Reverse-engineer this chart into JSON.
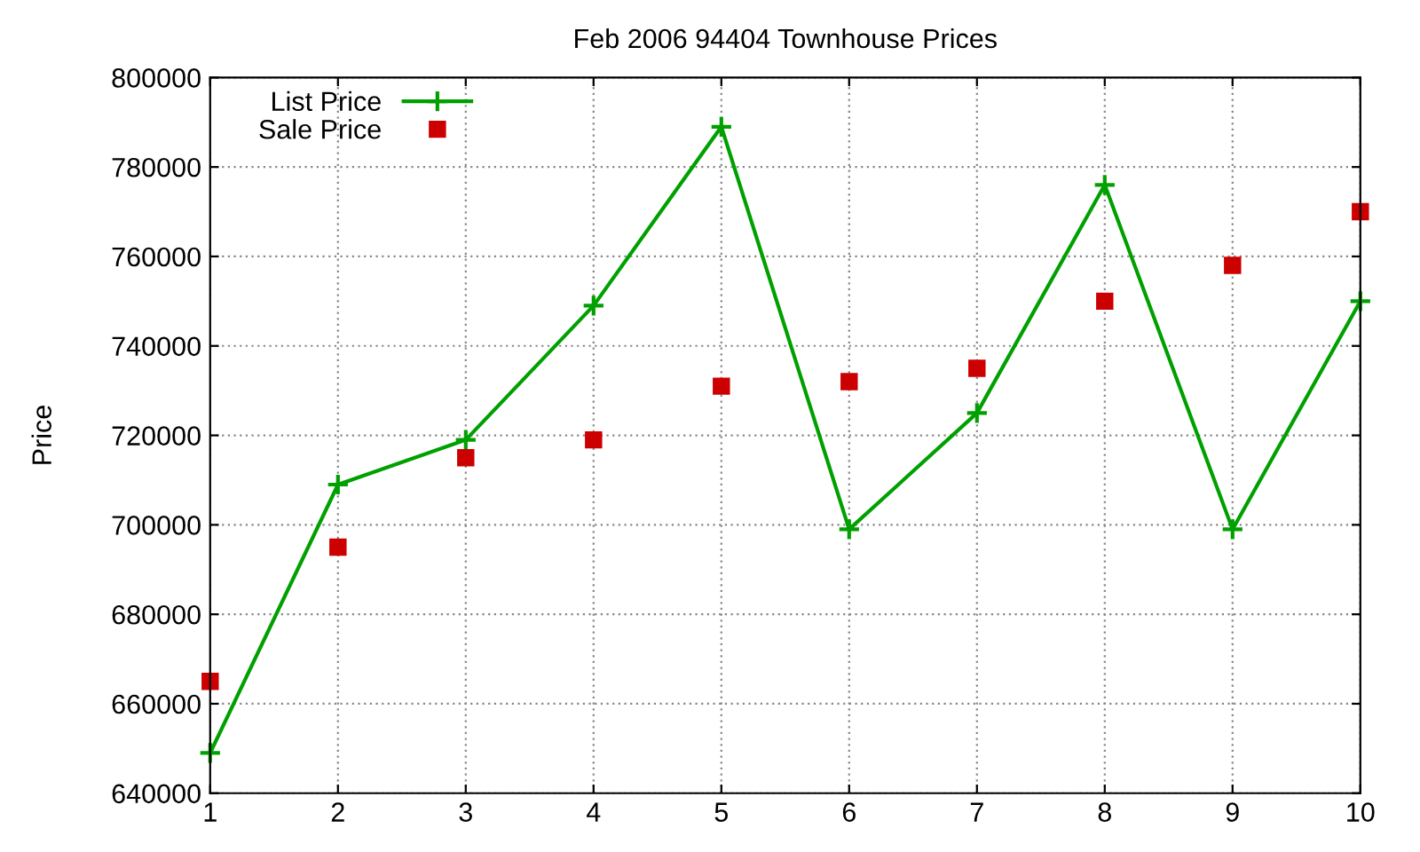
{
  "chart_data": {
    "type": "line",
    "title": "Feb 2006 94404 Townhouse Prices",
    "ylabel": "Price",
    "x": [
      1,
      2,
      3,
      4,
      5,
      6,
      7,
      8,
      9,
      10
    ],
    "series": [
      {
        "name": "List Price",
        "color": "#00a000",
        "marker": "cross",
        "values": [
          649000,
          709000,
          719000,
          749000,
          789000,
          699000,
          725000,
          776000,
          699000,
          750000
        ]
      },
      {
        "name": "Sale Price",
        "type": "scatter",
        "color": "#cc0000",
        "marker": "square",
        "values": [
          665000,
          695000,
          715000,
          719000,
          731000,
          732000,
          735000,
          750000,
          758000,
          770000
        ]
      }
    ],
    "xlim": [
      1,
      10
    ],
    "xticks": [
      1,
      2,
      3,
      4,
      5,
      6,
      7,
      8,
      9,
      10
    ],
    "ylim": [
      640000,
      800000
    ],
    "yticks": [
      640000,
      660000,
      680000,
      700000,
      720000,
      740000,
      760000,
      780000,
      800000
    ],
    "grid": true,
    "legend": "top left"
  }
}
